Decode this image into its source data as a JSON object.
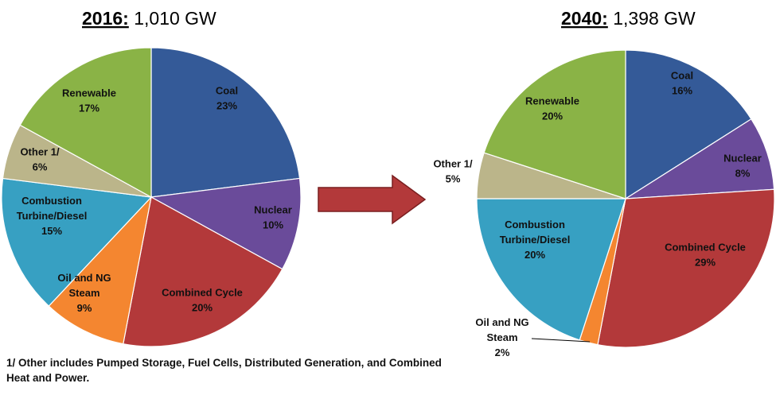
{
  "chart_data": [
    {
      "type": "pie",
      "title_year": "2016:",
      "title_value": " 1,010 GW",
      "slices": [
        {
          "label": "Coal",
          "value": 23,
          "value_label": "23%",
          "color": "#345A98"
        },
        {
          "label": "Nuclear",
          "value": 10,
          "value_label": "10%",
          "color": "#6A4B9A"
        },
        {
          "label": "Combined Cycle",
          "value": 20,
          "value_label": "20%",
          "color": "#B3393A"
        },
        {
          "label": "Oil and NG Steam",
          "value": 9,
          "value_label": "9%",
          "color": "#F48630"
        },
        {
          "label": "Combustion Turbine/Diesel",
          "value": 15,
          "value_label": "15%",
          "color": "#37A0C2"
        },
        {
          "label": "Other 1/",
          "value": 6,
          "value_label": "6%",
          "color": "#BBB58A"
        },
        {
          "label": "Renewable",
          "value": 17,
          "value_label": "17%",
          "color": "#8AB346"
        }
      ]
    },
    {
      "type": "pie",
      "title_year": "2040:",
      "title_value": " 1,398 GW",
      "slices": [
        {
          "label": "Coal",
          "value": 16,
          "value_label": "16%",
          "color": "#345A98"
        },
        {
          "label": "Nuclear",
          "value": 8,
          "value_label": "8%",
          "color": "#6A4B9A"
        },
        {
          "label": "Combined Cycle",
          "value": 29,
          "value_label": "29%",
          "color": "#B3393A"
        },
        {
          "label": "Oil and NG Steam",
          "value": 2,
          "value_label": "2%",
          "color": "#F48630"
        },
        {
          "label": "Combustion Turbine/Diesel",
          "value": 20,
          "value_label": "20%",
          "color": "#37A0C2"
        },
        {
          "label": "Other 1/",
          "value": 5,
          "value_label": "5%",
          "color": "#BBB58A"
        },
        {
          "label": "Renewable",
          "value": 20,
          "value_label": "20%",
          "color": "#8AB346"
        }
      ]
    }
  ],
  "arrow_color": "#B3393A",
  "footnote": "1/ Other includes Pumped Storage, Fuel Cells, Distributed Generation, and Combined Heat and Power."
}
